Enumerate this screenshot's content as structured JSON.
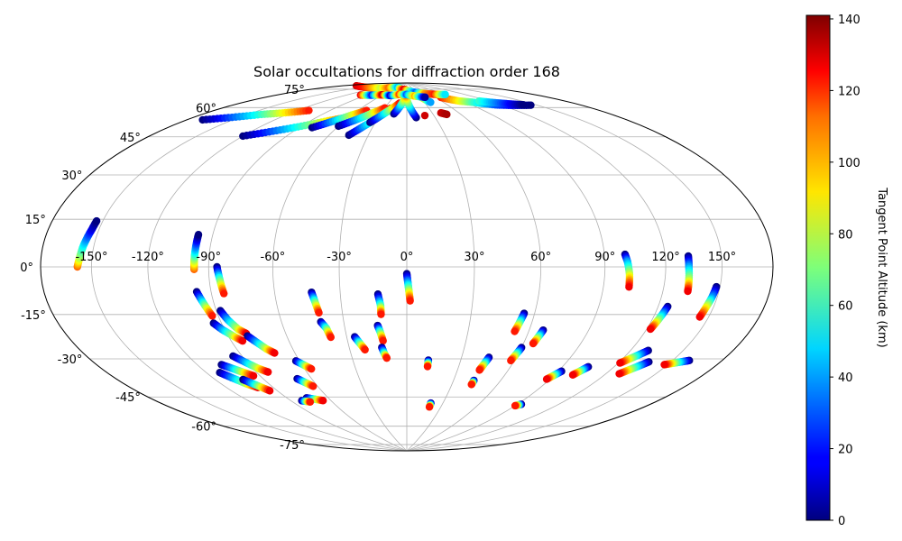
{
  "chart_data": {
    "type": "scatter",
    "projection": "hammer",
    "title": "Solar occultations for diffraction order 168",
    "grid": true,
    "lon_tick_labels": [
      "-150°",
      "-120°",
      "-90°",
      "-60°",
      "-30°",
      "0°",
      "30°",
      "60°",
      "90°",
      "120°",
      "150°"
    ],
    "lon_ticks": [
      -150,
      -120,
      -90,
      -60,
      -30,
      0,
      30,
      60,
      90,
      120,
      150
    ],
    "lat_tick_labels": [
      "-75°",
      "-60°",
      "-45°",
      "-30°",
      "-15°",
      "0°",
      "15°",
      "30°",
      "45°",
      "60°",
      "75°"
    ],
    "lat_ticks": [
      -75,
      -60,
      -45,
      -30,
      -15,
      0,
      15,
      30,
      45,
      60,
      75
    ],
    "colorbar": {
      "label": "Tangent Point Altitude (km)",
      "colormap": "jet",
      "range": [
        0,
        141
      ],
      "tick_labels": [
        "0",
        "20",
        "40",
        "60",
        "80",
        "100",
        "120",
        "140"
      ],
      "ticks": [
        0,
        20,
        40,
        60,
        80,
        100,
        120,
        140
      ]
    },
    "series": [
      {
        "lon": [
          -158,
          -157,
          -156,
          -155,
          -154,
          -153.5
        ],
        "lat": [
          0,
          3,
          7,
          10,
          13,
          16
        ],
        "alt": [
          110,
          80,
          55,
          35,
          15,
          0
        ]
      },
      {
        "lon": [
          -97,
          -97,
          -97,
          -97,
          -97
        ],
        "lat": [
          -1,
          2,
          5,
          9,
          13
        ],
        "alt": [
          110,
          85,
          60,
          30,
          0
        ]
      },
      {
        "lon": [
          -86,
          -85,
          -84
        ],
        "lat": [
          0,
          -5,
          -11
        ],
        "alt": [
          0,
          60,
          120
        ]
      },
      {
        "lon": [
          -97,
          -95,
          -93
        ],
        "lat": [
          -10,
          -15,
          -20
        ],
        "alt": [
          0,
          60,
          120
        ]
      },
      {
        "lon": [
          -88,
          -86,
          -83,
          -80
        ],
        "lat": [
          -18,
          -22,
          -26,
          -28
        ],
        "alt": [
          0,
          40,
          80,
          125
        ]
      },
      {
        "lon": [
          -94,
          -91,
          -87,
          -84
        ],
        "lat": [
          -23,
          -26,
          -29,
          -31
        ],
        "alt": [
          0,
          40,
          80,
          125
        ]
      },
      {
        "lon": [
          -80,
          -77,
          -74,
          -71
        ],
        "lat": [
          -29,
          -32,
          -35,
          -37
        ],
        "alt": [
          0,
          40,
          80,
          125
        ]
      },
      {
        "lon": [
          -43,
          -42,
          -41
        ],
        "lat": [
          -11,
          -15,
          -20
        ],
        "alt": [
          0,
          60,
          120
        ]
      },
      {
        "lon": [
          -41,
          -39,
          -38
        ],
        "lat": [
          -24,
          -27,
          -31
        ],
        "alt": [
          0,
          60,
          120
        ]
      },
      {
        "lon": [
          -13,
          -12,
          -12
        ],
        "lat": [
          -12,
          -17,
          -21
        ],
        "alt": [
          0,
          60,
          120
        ]
      },
      {
        "lon": [
          -14,
          -13,
          -12
        ],
        "lat": [
          -26,
          -29,
          -33
        ],
        "alt": [
          0,
          60,
          120
        ]
      },
      {
        "lon": [
          -26,
          -24,
          -22
        ],
        "lat": [
          -31,
          -34,
          -37
        ],
        "alt": [
          0,
          60,
          120
        ]
      },
      {
        "lon": [
          -13,
          -12,
          -11
        ],
        "lat": [
          -36,
          -39,
          -41
        ],
        "alt": [
          0,
          60,
          120
        ]
      },
      {
        "lon": [
          0,
          0.5,
          1,
          1.5
        ],
        "lat": [
          -3,
          -7,
          -11,
          -15
        ],
        "alt": [
          0,
          40,
          80,
          120
        ]
      },
      {
        "lon": [
          -62,
          -59,
          -56
        ],
        "lat": [
          -41,
          -43,
          -45
        ],
        "alt": [
          0,
          60,
          120
        ]
      },
      {
        "lon": [
          -69,
          -66,
          -63
        ],
        "lat": [
          -49,
          -51,
          -53
        ],
        "alt": [
          0,
          60,
          120
        ]
      },
      {
        "lon": [
          -106,
          -102,
          -98,
          -94
        ],
        "lat": [
          -40,
          -42,
          -44,
          -46
        ],
        "alt": [
          0,
          40,
          80,
          125
        ]
      },
      {
        "lon": [
          -95,
          -91,
          -87,
          -83
        ],
        "lat": [
          -37,
          -40,
          -43,
          -45
        ],
        "alt": [
          0,
          40,
          80,
          125
        ]
      },
      {
        "lon": [
          -112,
          -108,
          -104,
          -100
        ],
        "lat": [
          -43,
          -46,
          -49,
          -51
        ],
        "alt": [
          0,
          40,
          80,
          125
        ]
      },
      {
        "lon": [
          -103,
          -99,
          -95
        ],
        "lat": [
          -47,
          -50,
          -53
        ],
        "alt": [
          0,
          60,
          125
        ]
      },
      {
        "lon": [
          -76,
          -71,
          -66
        ],
        "lat": [
          -58,
          -59,
          -60
        ],
        "alt": [
          0,
          60,
          125
        ]
      },
      {
        "lon": [
          -82,
          -77
        ],
        "lat": [
          -59,
          -60
        ],
        "alt": [
          0,
          120
        ]
      },
      {
        "lon": [
          12,
          12
        ],
        "lat": [
          -42,
          -45
        ],
        "alt": [
          0,
          120
        ]
      },
      {
        "lon": [
          43,
          43
        ],
        "lat": [
          -51,
          -53
        ],
        "alt": [
          0,
          120
        ]
      },
      {
        "lon": [
          20,
          20
        ],
        "lat": [
          -63,
          -65
        ],
        "alt": [
          0,
          120
        ]
      },
      {
        "lon": [
          45,
          44,
          43
        ],
        "lat": [
          -40,
          -43,
          -46
        ],
        "alt": [
          0,
          60,
          120
        ]
      },
      {
        "lon": [
          67,
          66,
          65
        ],
        "lat": [
          -27,
          -30,
          -33
        ],
        "alt": [
          0,
          60,
          120
        ]
      },
      {
        "lon": [
          55,
          54,
          53
        ],
        "lat": [
          -20,
          -24,
          -28
        ],
        "alt": [
          0,
          60,
          120
        ]
      },
      {
        "lon": [
          60,
          59,
          58
        ],
        "lat": [
          -35,
          -38,
          -41
        ],
        "alt": [
          0,
          60,
          120
        ]
      },
      {
        "lon": [
          100,
          101,
          102,
          102.5
        ],
        "lat": [
          5,
          2,
          -3,
          -8
        ],
        "alt": [
          0,
          40,
          80,
          125
        ]
      },
      {
        "lon": [
          132,
          132,
          132.5,
          133
        ],
        "lat": [
          4,
          0,
          -5,
          -9
        ],
        "alt": [
          0,
          40,
          80,
          125
        ]
      },
      {
        "lon": [
          148,
          147,
          146,
          145
        ],
        "lat": [
          -7,
          -11,
          -14,
          -18
        ],
        "alt": [
          0,
          40,
          80,
          125
        ]
      },
      {
        "lon": [
          125,
          124,
          123,
          122
        ],
        "lat": [
          -15,
          -18,
          -21,
          -24
        ],
        "alt": [
          0,
          40,
          80,
          125
        ]
      },
      {
        "lon": [
          130,
          127,
          124,
          121
        ],
        "lat": [
          -32,
          -34,
          -36,
          -38
        ],
        "alt": [
          0,
          40,
          80,
          125
        ]
      },
      {
        "lon": [
          137,
          134,
          131,
          128
        ],
        "lat": [
          -36,
          -38,
          -40,
          -42
        ],
        "alt": [
          0,
          40,
          80,
          125
        ]
      },
      {
        "lon": [
          160,
          156,
          152,
          148
        ],
        "lat": [
          -33,
          -34,
          -35,
          -36
        ],
        "alt": [
          0,
          40,
          80,
          125
        ]
      },
      {
        "lon": [
          105,
          103,
          101
        ],
        "lat": [
          -41,
          -43,
          -45
        ],
        "alt": [
          0,
          60,
          125
        ]
      },
      {
        "lon": [
          92,
          90,
          88
        ],
        "lat": [
          -44,
          -46,
          -48
        ],
        "alt": [
          0,
          60,
          125
        ]
      },
      {
        "lon": [
          93,
          90
        ],
        "lat": [
          -60,
          -61
        ],
        "alt": [
          0,
          120
        ]
      },
      {
        "lon": [
          -170,
          -155,
          -140,
          -125,
          -110
        ],
        "lat": [
          55,
          59,
          63,
          66,
          69
        ],
        "alt": [
          0,
          30,
          60,
          90,
          120
        ]
      },
      {
        "lon": [
          -120,
          -105,
          -90,
          -75,
          -60
        ],
        "lat": [
          54,
          58,
          62,
          66,
          69
        ],
        "alt": [
          0,
          30,
          60,
          90,
          120
        ]
      },
      {
        "lon": [
          -80,
          -70,
          -60,
          -50
        ],
        "lat": [
          62,
          66,
          70,
          73
        ],
        "alt": [
          0,
          40,
          80,
          120
        ]
      },
      {
        "lon": [
          -60,
          -50,
          -40,
          -30
        ],
        "lat": [
          64,
          68,
          72,
          75
        ],
        "alt": [
          0,
          40,
          80,
          120
        ]
      },
      {
        "lon": [
          -45,
          -38,
          -30,
          -22
        ],
        "lat": [
          60,
          65,
          70,
          75
        ],
        "alt": [
          0,
          40,
          80,
          120
        ]
      },
      {
        "lon": [
          -35,
          -28,
          -20,
          -12
        ],
        "lat": [
          67,
          71,
          75,
          78
        ],
        "alt": [
          0,
          40,
          80,
          120
        ]
      },
      {
        "lon": [
          -15,
          -10,
          -5,
          0
        ],
        "lat": [
          72,
          76,
          80,
          83
        ],
        "alt": [
          0,
          40,
          80,
          120
        ]
      },
      {
        "lon": [
          10,
          5,
          0,
          -5
        ],
        "lat": [
          70,
          75,
          80,
          84
        ],
        "alt": [
          0,
          40,
          80,
          120
        ]
      },
      {
        "lon": [
          30,
          35,
          40
        ],
        "lat": [
          82,
          80,
          78
        ],
        "alt": [
          120,
          80,
          40
        ]
      },
      {
        "lon": [
          70,
          85,
          100,
          115,
          130,
          145
        ],
        "lat": [
          80,
          77,
          75,
          72,
          70,
          68
        ],
        "alt": [
          120,
          90,
          60,
          30,
          15,
          0
        ]
      },
      {
        "lon": [
          110,
          120,
          130,
          140
        ],
        "lat": [
          75,
          73,
          71,
          69
        ],
        "alt": [
          60,
          40,
          20,
          0
        ]
      },
      {
        "lon": [
          -170,
          -150,
          -130,
          -110,
          -90,
          -70,
          -50,
          -30,
          -10,
          10,
          30,
          50,
          70,
          90
        ],
        "lat": [
          82,
          83,
          84,
          85,
          86,
          87,
          87,
          86,
          86,
          85,
          84,
          83,
          82,
          81
        ],
        "alt": [
          130,
          120,
          100,
          80,
          110,
          60,
          40,
          90,
          130,
          70,
          30,
          100,
          120,
          50
        ]
      },
      {
        "lon": [
          -100,
          -80,
          -60,
          -40,
          -20,
          0,
          20,
          40
        ],
        "lat": [
          80,
          81,
          82,
          82,
          83,
          83,
          82,
          81
        ],
        "alt": [
          125,
          20,
          135,
          10,
          115,
          30,
          100,
          5
        ]
      },
      {
        "lon": [
          40,
          45
        ],
        "lat": [
          72,
          71
        ],
        "alt": [
          130,
          135
        ]
      },
      {
        "lon": [
          20
        ],
        "lat": [
          71
        ],
        "alt": [
          130
        ]
      }
    ]
  }
}
